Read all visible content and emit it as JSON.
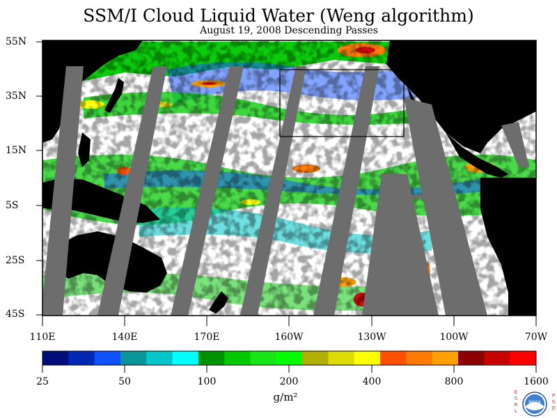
{
  "title": "SSM/I Cloud Liquid Water (Weng algorithm)",
  "subtitle": "August 19, 2008  Descending Passes",
  "lat_labels": [
    "55N",
    "35N",
    "15N",
    "5S",
    "25S",
    "45S"
  ],
  "lon_labels": [
    "110E",
    "140E",
    "170E",
    "160W",
    "130W",
    "100W",
    "70W"
  ],
  "colorbar": {
    "colors": [
      "#000d7a",
      "#0028b4",
      "#0f50ff",
      "#08969a",
      "#00c7c8",
      "#00ffff",
      "#009200",
      "#00c900",
      "#16e616",
      "#00ff00",
      "#b0b000",
      "#dcdc00",
      "#ffff00",
      "#ff5000",
      "#ff7800",
      "#ffa000",
      "#8c0000",
      "#c80000",
      "#ff0000"
    ],
    "tick_labels": [
      "25",
      "50",
      "100",
      "200",
      "400",
      "800",
      "1600"
    ],
    "units": "g/m²"
  },
  "logo": {
    "left_letters": "ESRL",
    "right_letters": "PSD",
    "badge_text": "NOAA"
  }
}
